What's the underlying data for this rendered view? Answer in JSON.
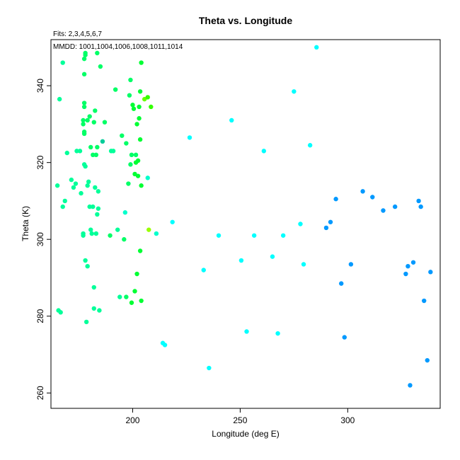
{
  "chart_data": {
    "type": "scatter",
    "title": "Theta vs. Longitude",
    "subtitle_fits": "Fits: 2,3,4,5,6,7",
    "subtitle_mmdd": "MMDD: 1001,1004,1006,1008,1011,1014",
    "xlabel": "Longitude (deg E)",
    "ylabel": "Theta (K)",
    "xlim": [
      162,
      343
    ],
    "ylim": [
      256,
      352
    ],
    "xticks": [
      200,
      250,
      300
    ],
    "yticks": [
      260,
      280,
      300,
      320,
      340
    ],
    "grid": false,
    "legend": "none",
    "points": [
      {
        "x": 165.5,
        "y": 281.5,
        "c": "#00ff99"
      },
      {
        "x": 166.5,
        "y": 281,
        "c": "#00ff99"
      },
      {
        "x": 165,
        "y": 314,
        "c": "#00ff99"
      },
      {
        "x": 166,
        "y": 336.5,
        "c": "#00ff99"
      },
      {
        "x": 167.5,
        "y": 346,
        "c": "#00ff99"
      },
      {
        "x": 167.5,
        "y": 308.5,
        "c": "#00ff99"
      },
      {
        "x": 168.5,
        "y": 310,
        "c": "#00ff99"
      },
      {
        "x": 169.5,
        "y": 322.5,
        "c": "#00ff99"
      },
      {
        "x": 171.5,
        "y": 315.5,
        "c": "#00ff99"
      },
      {
        "x": 172.5,
        "y": 313.5,
        "c": "#00ff99"
      },
      {
        "x": 173.5,
        "y": 314.5,
        "c": "#00ff99"
      },
      {
        "x": 174,
        "y": 323,
        "c": "#00ff99"
      },
      {
        "x": 175.5,
        "y": 323,
        "c": "#00ff99"
      },
      {
        "x": 176,
        "y": 312,
        "c": "#00ff99"
      },
      {
        "x": 177,
        "y": 301,
        "c": "#00ff99"
      },
      {
        "x": 177,
        "y": 301.5,
        "c": "#00ff99"
      },
      {
        "x": 177.5,
        "y": 319.5,
        "c": "#00ff99"
      },
      {
        "x": 178,
        "y": 319,
        "c": "#00ff99"
      },
      {
        "x": 178,
        "y": 294.5,
        "c": "#00ff99"
      },
      {
        "x": 179,
        "y": 293,
        "c": "#00ff99"
      },
      {
        "x": 178.5,
        "y": 278.5,
        "c": "#00ff99"
      },
      {
        "x": 179,
        "y": 314,
        "c": "#00ff99"
      },
      {
        "x": 179.5,
        "y": 315,
        "c": "#00ff99"
      },
      {
        "x": 180,
        "y": 308.5,
        "c": "#00ff99"
      },
      {
        "x": 180.5,
        "y": 302.5,
        "c": "#00ff99"
      },
      {
        "x": 181,
        "y": 301.5,
        "c": "#00ff99"
      },
      {
        "x": 181.5,
        "y": 308.5,
        "c": "#00ff99"
      },
      {
        "x": 182,
        "y": 287.5,
        "c": "#00ff99"
      },
      {
        "x": 182,
        "y": 282,
        "c": "#00ff99"
      },
      {
        "x": 182.5,
        "y": 313.5,
        "c": "#00ff99"
      },
      {
        "x": 183,
        "y": 301.5,
        "c": "#00ff99"
      },
      {
        "x": 183.5,
        "y": 306.5,
        "c": "#00ff99"
      },
      {
        "x": 184,
        "y": 312.5,
        "c": "#00ff99"
      },
      {
        "x": 184,
        "y": 308,
        "c": "#00ff99"
      },
      {
        "x": 184.5,
        "y": 281.5,
        "c": "#00ff99"
      },
      {
        "x": 177,
        "y": 330,
        "c": "#00ff66"
      },
      {
        "x": 177,
        "y": 331,
        "c": "#00ff66"
      },
      {
        "x": 177.5,
        "y": 328,
        "c": "#00ff66"
      },
      {
        "x": 177.5,
        "y": 327.5,
        "c": "#00ff66"
      },
      {
        "x": 177.5,
        "y": 334.5,
        "c": "#00ff66"
      },
      {
        "x": 177.5,
        "y": 335.5,
        "c": "#00ff66"
      },
      {
        "x": 177.5,
        "y": 343,
        "c": "#00ff66"
      },
      {
        "x": 177.5,
        "y": 347,
        "c": "#00ff66"
      },
      {
        "x": 178,
        "y": 348,
        "c": "#00ff66"
      },
      {
        "x": 178,
        "y": 348.5,
        "c": "#00ff66"
      },
      {
        "x": 179,
        "y": 331,
        "c": "#00ff66"
      },
      {
        "x": 180,
        "y": 332,
        "c": "#00ff66"
      },
      {
        "x": 180.5,
        "y": 324,
        "c": "#00ff66"
      },
      {
        "x": 181.5,
        "y": 322,
        "c": "#00ff66"
      },
      {
        "x": 182,
        "y": 330.5,
        "c": "#00ff66"
      },
      {
        "x": 182.5,
        "y": 333.5,
        "c": "#00ff66"
      },
      {
        "x": 183,
        "y": 322,
        "c": "#00ff66"
      },
      {
        "x": 183.5,
        "y": 324,
        "c": "#00ff66"
      },
      {
        "x": 183.5,
        "y": 348.5,
        "c": "#00ff66"
      },
      {
        "x": 185,
        "y": 345,
        "c": "#00ff66"
      },
      {
        "x": 186,
        "y": 325.5,
        "c": "#00cc99"
      },
      {
        "x": 187,
        "y": 330.5,
        "c": "#00ff66"
      },
      {
        "x": 189.5,
        "y": 301,
        "c": "#00ff66"
      },
      {
        "x": 190,
        "y": 323,
        "c": "#00ff99"
      },
      {
        "x": 191,
        "y": 323,
        "c": "#00ff99"
      },
      {
        "x": 192,
        "y": 339,
        "c": "#00ff66"
      },
      {
        "x": 193,
        "y": 302.5,
        "c": "#00ff99"
      },
      {
        "x": 194,
        "y": 285,
        "c": "#00ff99"
      },
      {
        "x": 195,
        "y": 327,
        "c": "#00ff66"
      },
      {
        "x": 196,
        "y": 300,
        "c": "#00ff66"
      },
      {
        "x": 196.5,
        "y": 307,
        "c": "#00ffcc"
      },
      {
        "x": 197,
        "y": 285,
        "c": "#00ff66"
      },
      {
        "x": 197,
        "y": 325,
        "c": "#00ff66"
      },
      {
        "x": 198,
        "y": 314.5,
        "c": "#00ff66"
      },
      {
        "x": 198.5,
        "y": 337.5,
        "c": "#00ff66"
      },
      {
        "x": 199,
        "y": 341.5,
        "c": "#00ff66"
      },
      {
        "x": 199,
        "y": 319.5,
        "c": "#00ff66"
      },
      {
        "x": 199.5,
        "y": 322,
        "c": "#00ff66"
      },
      {
        "x": 199.5,
        "y": 283.5,
        "c": "#00ff33"
      },
      {
        "x": 200,
        "y": 335,
        "c": "#00ff33"
      },
      {
        "x": 200.5,
        "y": 334,
        "c": "#00ff33"
      },
      {
        "x": 201,
        "y": 317,
        "c": "#00ff33"
      },
      {
        "x": 201,
        "y": 286.5,
        "c": "#00ff33"
      },
      {
        "x": 201.5,
        "y": 322,
        "c": "#00ff66"
      },
      {
        "x": 201.5,
        "y": 320,
        "c": "#00ff33"
      },
      {
        "x": 202,
        "y": 330,
        "c": "#00ff33"
      },
      {
        "x": 202,
        "y": 291,
        "c": "#00ff33"
      },
      {
        "x": 202.5,
        "y": 320.5,
        "c": "#00ff33"
      },
      {
        "x": 202.5,
        "y": 316.5,
        "c": "#00ff33"
      },
      {
        "x": 203,
        "y": 334.5,
        "c": "#00ff33"
      },
      {
        "x": 203,
        "y": 331.5,
        "c": "#00ff33"
      },
      {
        "x": 203.5,
        "y": 338.5,
        "c": "#00ff33"
      },
      {
        "x": 203.5,
        "y": 326,
        "c": "#00ff33"
      },
      {
        "x": 203.5,
        "y": 297,
        "c": "#00ff33"
      },
      {
        "x": 204,
        "y": 346,
        "c": "#00ff33"
      },
      {
        "x": 204,
        "y": 314,
        "c": "#00ff33"
      },
      {
        "x": 204,
        "y": 284,
        "c": "#00ff33"
      },
      {
        "x": 205.5,
        "y": 336.5,
        "c": "#66ff00"
      },
      {
        "x": 207,
        "y": 337,
        "c": "#33ff00"
      },
      {
        "x": 207,
        "y": 316,
        "c": "#00ffcc"
      },
      {
        "x": 207.5,
        "y": 302.5,
        "c": "#99ff00"
      },
      {
        "x": 208.5,
        "y": 334.5,
        "c": "#33ff00"
      },
      {
        "x": 211,
        "y": 301.5,
        "c": "#00ffcc"
      },
      {
        "x": 214,
        "y": 273,
        "c": "#00ffff"
      },
      {
        "x": 215,
        "y": 272.5,
        "c": "#00ffff"
      },
      {
        "x": 218.5,
        "y": 304.5,
        "c": "#00ffff"
      },
      {
        "x": 226.5,
        "y": 326.5,
        "c": "#00ffff"
      },
      {
        "x": 233,
        "y": 292,
        "c": "#00ffff"
      },
      {
        "x": 235.5,
        "y": 266.5,
        "c": "#00ffff"
      },
      {
        "x": 240,
        "y": 301,
        "c": "#00ffff"
      },
      {
        "x": 246,
        "y": 331,
        "c": "#00ffff"
      },
      {
        "x": 250.5,
        "y": 294.5,
        "c": "#00ffff"
      },
      {
        "x": 253,
        "y": 276,
        "c": "#00ffff"
      },
      {
        "x": 256.5,
        "y": 301,
        "c": "#00ffff"
      },
      {
        "x": 261,
        "y": 323,
        "c": "#00ffff"
      },
      {
        "x": 265,
        "y": 295.5,
        "c": "#00ffff"
      },
      {
        "x": 267.5,
        "y": 275.5,
        "c": "#00ffff"
      },
      {
        "x": 270,
        "y": 301,
        "c": "#00ffff"
      },
      {
        "x": 275,
        "y": 338.5,
        "c": "#00ffff"
      },
      {
        "x": 278,
        "y": 304,
        "c": "#00ffff"
      },
      {
        "x": 279.5,
        "y": 293.5,
        "c": "#00ffff"
      },
      {
        "x": 282.5,
        "y": 324.5,
        "c": "#00ffff"
      },
      {
        "x": 285.5,
        "y": 350,
        "c": "#00ffff"
      },
      {
        "x": 290,
        "y": 303,
        "c": "#0099ff"
      },
      {
        "x": 292,
        "y": 304.5,
        "c": "#0099ff"
      },
      {
        "x": 294.5,
        "y": 310.5,
        "c": "#0099ff"
      },
      {
        "x": 297,
        "y": 288.5,
        "c": "#0099ff"
      },
      {
        "x": 298.5,
        "y": 274.5,
        "c": "#0099ff"
      },
      {
        "x": 301.5,
        "y": 293.5,
        "c": "#0099ff"
      },
      {
        "x": 307,
        "y": 312.5,
        "c": "#0099ff"
      },
      {
        "x": 311.5,
        "y": 311,
        "c": "#0099ff"
      },
      {
        "x": 316.5,
        "y": 307.5,
        "c": "#0099ff"
      },
      {
        "x": 322,
        "y": 308.5,
        "c": "#0099ff"
      },
      {
        "x": 327,
        "y": 291,
        "c": "#0099ff"
      },
      {
        "x": 328,
        "y": 293,
        "c": "#0099ff"
      },
      {
        "x": 329,
        "y": 262,
        "c": "#0099ff"
      },
      {
        "x": 330.5,
        "y": 294,
        "c": "#0099ff"
      },
      {
        "x": 333,
        "y": 310,
        "c": "#0099ff"
      },
      {
        "x": 334,
        "y": 308.5,
        "c": "#0099ff"
      },
      {
        "x": 335.5,
        "y": 284,
        "c": "#0099ff"
      },
      {
        "x": 337,
        "y": 268.5,
        "c": "#0099ff"
      },
      {
        "x": 338.5,
        "y": 291.5,
        "c": "#0099ff"
      }
    ]
  }
}
